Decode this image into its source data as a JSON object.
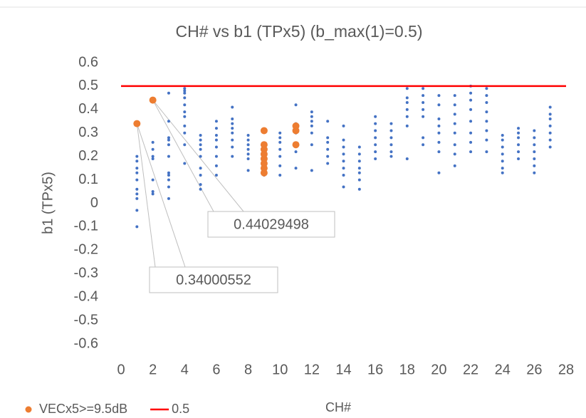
{
  "chart_data": {
    "type": "scatter",
    "title": "CH# vs b1 (TPx5) (b_max(1)=0.5)",
    "xlabel": "CH#",
    "ylabel": "b1 (TPx5)",
    "xlim": [
      0,
      28
    ],
    "ylim": [
      -0.6,
      0.6
    ],
    "xticks": [
      0,
      2,
      4,
      6,
      8,
      10,
      12,
      14,
      16,
      18,
      20,
      22,
      24,
      26,
      28
    ],
    "yticks": [
      0.6,
      0.5,
      0.4,
      0.3,
      0.2,
      0.1,
      0,
      -0.1,
      -0.2,
      -0.3,
      -0.4,
      -0.5,
      -0.6
    ],
    "grid": false,
    "legend": "bottom-left",
    "series": [
      {
        "color": "#4472c4",
        "x": [
          1,
          1,
          1,
          1,
          1,
          1,
          1,
          1,
          1,
          1,
          2,
          2,
          2,
          2,
          2,
          2,
          2,
          3,
          3,
          3,
          3,
          3,
          3,
          3,
          3,
          3,
          3,
          3,
          4,
          4,
          4,
          4,
          4,
          4,
          4,
          4,
          4,
          4,
          4,
          5,
          5,
          5,
          5,
          5,
          5,
          5,
          5,
          5,
          6,
          6,
          6,
          6,
          6,
          6,
          6,
          6,
          7,
          7,
          7,
          7,
          7,
          7,
          7,
          7,
          8,
          8,
          8,
          8,
          8,
          8,
          8,
          9,
          9,
          9,
          9,
          9,
          9,
          9,
          9,
          10,
          10,
          10,
          10,
          10,
          10,
          10,
          11,
          11,
          11,
          11,
          11,
          11,
          11,
          12,
          12,
          12,
          12,
          12,
          12,
          12,
          13,
          13,
          13,
          13,
          13,
          13,
          14,
          14,
          14,
          14,
          14,
          14,
          14,
          14,
          15,
          15,
          15,
          15,
          15,
          15,
          15,
          16,
          16,
          16,
          16,
          16,
          16,
          16,
          17,
          17,
          17,
          17,
          17,
          17,
          18,
          18,
          18,
          18,
          18,
          18,
          18,
          19,
          19,
          19,
          19,
          19,
          19,
          19,
          20,
          20,
          20,
          20,
          20,
          20,
          20,
          20,
          21,
          21,
          21,
          21,
          21,
          21,
          21,
          21,
          22,
          22,
          22,
          22,
          22,
          22,
          22,
          22,
          23,
          23,
          23,
          23,
          23,
          23,
          23,
          23,
          24,
          24,
          24,
          24,
          24,
          24,
          24,
          25,
          25,
          25,
          25,
          25,
          25,
          26,
          26,
          26,
          26,
          26,
          26,
          26,
          27,
          27,
          27,
          27,
          27,
          27,
          27
        ],
        "values": [
          -0.1,
          -0.03,
          0.02,
          0.04,
          0.06,
          0.1,
          0.13,
          0.15,
          0.18,
          0.2,
          0.04,
          0.05,
          0.1,
          0.19,
          0.2,
          0.23,
          0.26,
          0.02,
          0.07,
          0.1,
          0.12,
          0.13,
          0.2,
          0.25,
          0.27,
          0.28,
          0.35,
          0.47,
          0.17,
          0.25,
          0.3,
          0.33,
          0.37,
          0.39,
          0.42,
          0.45,
          0.47,
          0.48,
          0.49,
          0.06,
          0.08,
          0.12,
          0.15,
          0.2,
          0.23,
          0.25,
          0.27,
          0.29,
          0.12,
          0.16,
          0.2,
          0.24,
          0.27,
          0.29,
          0.32,
          0.35,
          0.2,
          0.24,
          0.27,
          0.3,
          0.32,
          0.34,
          0.36,
          0.41,
          0.14,
          0.19,
          0.21,
          0.23,
          0.25,
          0.27,
          0.29,
          0.12,
          0.14,
          0.16,
          0.18,
          0.2,
          0.22,
          0.24,
          0.31,
          0.12,
          0.16,
          0.2,
          0.23,
          0.26,
          0.28,
          0.3,
          0.15,
          0.22,
          0.25,
          0.3,
          0.32,
          0.34,
          0.42,
          0.14,
          0.25,
          0.3,
          0.33,
          0.35,
          0.37,
          0.39,
          0.17,
          0.2,
          0.23,
          0.26,
          0.28,
          0.35,
          0.07,
          0.12,
          0.15,
          0.18,
          0.21,
          0.24,
          0.27,
          0.33,
          0.06,
          0.1,
          0.13,
          0.15,
          0.18,
          0.21,
          0.24,
          0.19,
          0.22,
          0.25,
          0.28,
          0.31,
          0.34,
          0.37,
          0.2,
          0.22,
          0.25,
          0.28,
          0.31,
          0.34,
          0.19,
          0.33,
          0.37,
          0.4,
          0.43,
          0.45,
          0.49,
          0.25,
          0.28,
          0.37,
          0.4,
          0.43,
          0.46,
          0.49,
          0.13,
          0.22,
          0.26,
          0.3,
          0.33,
          0.36,
          0.42,
          0.46,
          0.16,
          0.21,
          0.25,
          0.3,
          0.34,
          0.38,
          0.42,
          0.46,
          0.22,
          0.26,
          0.3,
          0.35,
          0.4,
          0.44,
          0.47,
          0.5,
          0.22,
          0.27,
          0.31,
          0.35,
          0.39,
          0.43,
          0.46,
          0.49,
          0.13,
          0.15,
          0.18,
          0.21,
          0.24,
          0.27,
          0.29,
          0.19,
          0.22,
          0.25,
          0.28,
          0.3,
          0.32,
          0.13,
          0.16,
          0.19,
          0.22,
          0.25,
          0.28,
          0.31,
          0.24,
          0.27,
          0.3,
          0.33,
          0.36,
          0.38,
          0.41
        ]
      },
      {
        "name": "VECx5>=9.5dB",
        "color": "#ed7d31",
        "x": [
          1,
          2,
          9,
          9,
          9,
          9,
          9,
          9,
          9,
          9,
          11,
          11,
          11
        ],
        "values": [
          0.34000552,
          0.44029498,
          0.13,
          0.15,
          0.17,
          0.19,
          0.21,
          0.23,
          0.25,
          0.31,
          0.25,
          0.31,
          0.33
        ]
      },
      {
        "name": "0.5",
        "color": "#ff0000",
        "type": "line",
        "x": [
          0,
          28
        ],
        "values": [
          0.5,
          0.5
        ]
      }
    ],
    "annotations": [
      {
        "label": "0.44029498",
        "x": 2,
        "y": 0.44029498
      },
      {
        "label": "0.34000552",
        "x": 1,
        "y": 0.34000552
      }
    ]
  }
}
